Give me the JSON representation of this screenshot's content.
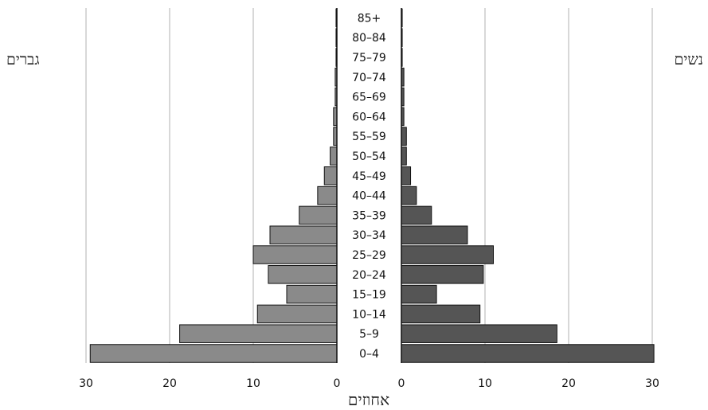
{
  "chart_data": {
    "type": "bar",
    "subtype": "population-pyramid",
    "title": "",
    "left_label": "גברים",
    "right_label": "נשים",
    "xlabel": "אחוזים",
    "ylabel": "",
    "xlim": [
      0,
      30
    ],
    "ticks": [
      "30",
      "20",
      "10",
      "0"
    ],
    "grid": true,
    "categories": [
      "85+",
      "80–84",
      "75–79",
      "70–74",
      "65–69",
      "60–64",
      "55–59",
      "50–54",
      "45–49",
      "40–44",
      "35–39",
      "30–34",
      "25–29",
      "20–24",
      "15–19",
      "10–14",
      "5–9",
      "0–4"
    ],
    "series": [
      {
        "name": "גברים",
        "side": "left",
        "color": "#8a8a8a",
        "values": [
          0.1,
          0.1,
          0.1,
          0.2,
          0.2,
          0.4,
          0.4,
          0.8,
          1.5,
          2.3,
          4.5,
          8.0,
          10.0,
          8.2,
          6.0,
          9.5,
          18.8,
          29.5
        ]
      },
      {
        "name": "נשים",
        "side": "right",
        "color": "#555555",
        "values": [
          0.1,
          0.1,
          0.1,
          0.3,
          0.3,
          0.3,
          0.6,
          0.6,
          1.1,
          1.8,
          3.6,
          7.9,
          11.0,
          9.8,
          4.2,
          9.4,
          18.6,
          30.2
        ]
      }
    ]
  }
}
